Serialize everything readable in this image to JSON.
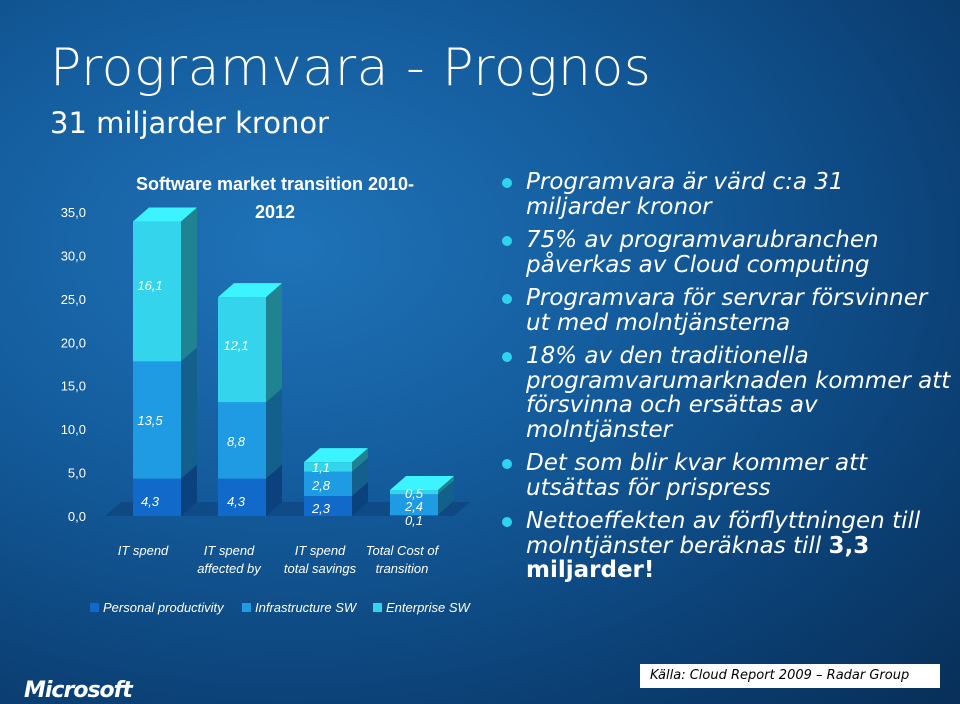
{
  "slide": {
    "title": "Programvara - Prognos",
    "subtitle": "31 miljarder kronor"
  },
  "bullets": [
    {
      "text": "Programvara är värd c:a 31 miljarder kronor"
    },
    {
      "text": "75% av programvarubranchen påverkas av Cloud computing"
    },
    {
      "text": "Programvara för servrar försvinner ut med molntjänsterna"
    },
    {
      "text": "18% av den traditionella programvarumarknaden kommer att försvinna och ersättas av molntjänster"
    },
    {
      "text": "Det som blir kvar kommer att utsättas för prispress"
    },
    {
      "text": "Nettoeffekten av förflyttningen till molntjänster beräknas till ",
      "bold": "3,3 miljarder!"
    }
  ],
  "source": "Källa: Cloud Report 2009 – Radar Group",
  "logo": "Microsoft",
  "colors": {
    "personal_productivity": "#1169c9",
    "infrastructure_sw": "#1e9be3",
    "enterprise_sw": "#33d4ec",
    "bullet": "#2fd3ee"
  },
  "chart_data": {
    "type": "bar",
    "stacked": true,
    "title": "Software market transition 2010-2012",
    "categories": [
      "IT spend",
      "IT spend affected by",
      "IT spend total savings",
      "Total Cost of transition"
    ],
    "series": [
      {
        "name": "Personal productivity",
        "values": [
          4.3,
          4.3,
          2.3,
          0.1
        ],
        "labels": [
          "4,3",
          "4,3",
          "2,3",
          "0,1"
        ]
      },
      {
        "name": "Infrastructure SW",
        "values": [
          13.5,
          8.8,
          2.8,
          2.4
        ],
        "labels": [
          "13,5",
          "8,8",
          "2,8",
          "2,4"
        ]
      },
      {
        "name": "Enterprise SW",
        "values": [
          16.1,
          12.1,
          1.1,
          0.5
        ],
        "labels": [
          "16,1",
          "12,1",
          "1,1",
          "0,5"
        ]
      }
    ],
    "ylim": [
      0,
      35
    ],
    "yticks": [
      "0,0",
      "5,0",
      "10,0",
      "15,0",
      "20,0",
      "25,0",
      "30,0",
      "35,0"
    ],
    "grid": false,
    "legend": "bottom"
  }
}
